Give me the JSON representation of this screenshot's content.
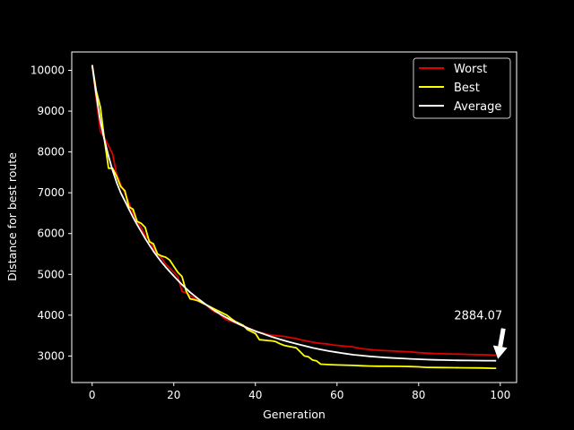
{
  "chart_data": {
    "type": "line",
    "title": "",
    "xlabel": "Generation",
    "ylabel": "Distance for best route",
    "xlim": [
      -5,
      104
    ],
    "ylim": [
      2350,
      10450
    ],
    "xticks": [
      0,
      20,
      40,
      60,
      80,
      100
    ],
    "yticks": [
      3000,
      4000,
      5000,
      6000,
      7000,
      8000,
      9000,
      10000
    ],
    "grid": false,
    "legend_position": "top-right",
    "background": "#000000",
    "axis_color": "#ffffff",
    "series": [
      {
        "name": "Worst",
        "color": "#e00000",
        "points": [
          [
            0,
            10130
          ],
          [
            1,
            9300
          ],
          [
            2,
            8500
          ],
          [
            3,
            8350
          ],
          [
            4,
            8150
          ],
          [
            5,
            7950
          ],
          [
            6,
            7450
          ],
          [
            7,
            7200
          ],
          [
            8,
            7000
          ],
          [
            9,
            6750
          ],
          [
            10,
            6500
          ],
          [
            11,
            6300
          ],
          [
            12,
            6150
          ],
          [
            13,
            5950
          ],
          [
            14,
            5850
          ],
          [
            15,
            5650
          ],
          [
            16,
            5500
          ],
          [
            17,
            5400
          ],
          [
            18,
            5250
          ],
          [
            19,
            5150
          ],
          [
            20,
            5050
          ],
          [
            21,
            4950
          ],
          [
            22,
            4580
          ],
          [
            23,
            4550
          ],
          [
            24,
            4480
          ],
          [
            25,
            4420
          ],
          [
            26,
            4380
          ],
          [
            27,
            4300
          ],
          [
            28,
            4250
          ],
          [
            29,
            4150
          ],
          [
            30,
            4080
          ],
          [
            31,
            4050
          ],
          [
            32,
            3950
          ],
          [
            33,
            3880
          ],
          [
            34,
            3850
          ],
          [
            35,
            3820
          ],
          [
            36,
            3780
          ],
          [
            37,
            3750
          ],
          [
            38,
            3700
          ],
          [
            39,
            3650
          ],
          [
            40,
            3600
          ],
          [
            41,
            3580
          ],
          [
            42,
            3560
          ],
          [
            43,
            3530
          ],
          [
            44,
            3510
          ],
          [
            45,
            3500
          ],
          [
            46,
            3490
          ],
          [
            47,
            3480
          ],
          [
            48,
            3460
          ],
          [
            49,
            3440
          ],
          [
            50,
            3430
          ],
          [
            51,
            3400
          ],
          [
            52,
            3380
          ],
          [
            53,
            3360
          ],
          [
            54,
            3340
          ],
          [
            55,
            3320
          ],
          [
            56,
            3310
          ],
          [
            57,
            3300
          ],
          [
            58,
            3290
          ],
          [
            59,
            3270
          ],
          [
            60,
            3260
          ],
          [
            61,
            3250
          ],
          [
            62,
            3240
          ],
          [
            63,
            3230
          ],
          [
            64,
            3220
          ],
          [
            65,
            3200
          ],
          [
            66,
            3180
          ],
          [
            67,
            3170
          ],
          [
            68,
            3160
          ],
          [
            69,
            3150
          ],
          [
            70,
            3140
          ],
          [
            72,
            3130
          ],
          [
            74,
            3120
          ],
          [
            76,
            3110
          ],
          [
            78,
            3100
          ],
          [
            80,
            3080
          ],
          [
            82,
            3070
          ],
          [
            84,
            3060
          ],
          [
            86,
            3055
          ],
          [
            88,
            3050
          ],
          [
            90,
            3045
          ],
          [
            92,
            3040
          ],
          [
            94,
            3035
          ],
          [
            96,
            3030
          ],
          [
            98,
            3025
          ],
          [
            99,
            3020
          ]
        ]
      },
      {
        "name": "Best",
        "color": "#ffff00",
        "points": [
          [
            0,
            10130
          ],
          [
            1,
            9500
          ],
          [
            2,
            9100
          ],
          [
            3,
            8300
          ],
          [
            4,
            7600
          ],
          [
            5,
            7600
          ],
          [
            6,
            7400
          ],
          [
            7,
            7150
          ],
          [
            8,
            7050
          ],
          [
            9,
            6650
          ],
          [
            10,
            6600
          ],
          [
            11,
            6300
          ],
          [
            12,
            6250
          ],
          [
            13,
            6150
          ],
          [
            14,
            5800
          ],
          [
            15,
            5750
          ],
          [
            16,
            5500
          ],
          [
            17,
            5450
          ],
          [
            18,
            5420
          ],
          [
            19,
            5350
          ],
          [
            20,
            5200
          ],
          [
            21,
            5050
          ],
          [
            22,
            4950
          ],
          [
            23,
            4600
          ],
          [
            24,
            4400
          ],
          [
            25,
            4380
          ],
          [
            26,
            4350
          ],
          [
            27,
            4300
          ],
          [
            28,
            4250
          ],
          [
            29,
            4200
          ],
          [
            30,
            4150
          ],
          [
            31,
            4100
          ],
          [
            32,
            4050
          ],
          [
            33,
            4000
          ],
          [
            34,
            3920
          ],
          [
            35,
            3850
          ],
          [
            36,
            3800
          ],
          [
            37,
            3750
          ],
          [
            38,
            3650
          ],
          [
            39,
            3600
          ],
          [
            40,
            3550
          ],
          [
            41,
            3400
          ],
          [
            42,
            3390
          ],
          [
            43,
            3380
          ],
          [
            44,
            3370
          ],
          [
            45,
            3350
          ],
          [
            46,
            3300
          ],
          [
            47,
            3260
          ],
          [
            48,
            3240
          ],
          [
            49,
            3220
          ],
          [
            50,
            3200
          ],
          [
            51,
            3100
          ],
          [
            52,
            3000
          ],
          [
            53,
            2980
          ],
          [
            54,
            2900
          ],
          [
            55,
            2880
          ],
          [
            56,
            2800
          ],
          [
            58,
            2790
          ],
          [
            60,
            2780
          ],
          [
            62,
            2775
          ],
          [
            64,
            2770
          ],
          [
            66,
            2760
          ],
          [
            68,
            2755
          ],
          [
            70,
            2750
          ],
          [
            72,
            2750
          ],
          [
            74,
            2748
          ],
          [
            76,
            2745
          ],
          [
            78,
            2740
          ],
          [
            80,
            2735
          ],
          [
            82,
            2720
          ],
          [
            84,
            2718
          ],
          [
            86,
            2716
          ],
          [
            88,
            2714
          ],
          [
            90,
            2712
          ],
          [
            92,
            2710
          ],
          [
            94,
            2708
          ],
          [
            96,
            2705
          ],
          [
            98,
            2700
          ],
          [
            99,
            2700
          ]
        ]
      },
      {
        "name": "Average",
        "color": "#ffffff",
        "points": [
          [
            0,
            10130
          ],
          [
            1,
            9400
          ],
          [
            2,
            8750
          ],
          [
            3,
            8300
          ],
          [
            4,
            7900
          ],
          [
            5,
            7550
          ],
          [
            6,
            7250
          ],
          [
            7,
            7000
          ],
          [
            8,
            6800
          ],
          [
            9,
            6600
          ],
          [
            10,
            6400
          ],
          [
            11,
            6220
          ],
          [
            12,
            6050
          ],
          [
            13,
            5880
          ],
          [
            14,
            5720
          ],
          [
            15,
            5570
          ],
          [
            16,
            5430
          ],
          [
            17,
            5300
          ],
          [
            18,
            5180
          ],
          [
            19,
            5070
          ],
          [
            20,
            4960
          ],
          [
            22,
            4750
          ],
          [
            24,
            4560
          ],
          [
            26,
            4400
          ],
          [
            28,
            4250
          ],
          [
            30,
            4110
          ],
          [
            32,
            3990
          ],
          [
            34,
            3880
          ],
          [
            36,
            3780
          ],
          [
            38,
            3690
          ],
          [
            40,
            3610
          ],
          [
            42,
            3540
          ],
          [
            44,
            3470
          ],
          [
            46,
            3410
          ],
          [
            48,
            3350
          ],
          [
            50,
            3300
          ],
          [
            52,
            3250
          ],
          [
            54,
            3200
          ],
          [
            56,
            3160
          ],
          [
            58,
            3120
          ],
          [
            60,
            3090
          ],
          [
            62,
            3060
          ],
          [
            64,
            3030
          ],
          [
            66,
            3010
          ],
          [
            68,
            2990
          ],
          [
            70,
            2975
          ],
          [
            72,
            2960
          ],
          [
            74,
            2950
          ],
          [
            76,
            2940
          ],
          [
            78,
            2930
          ],
          [
            80,
            2920
          ],
          [
            82,
            2912
          ],
          [
            84,
            2905
          ],
          [
            86,
            2900
          ],
          [
            88,
            2896
          ],
          [
            90,
            2893
          ],
          [
            92,
            2890
          ],
          [
            94,
            2888
          ],
          [
            96,
            2886
          ],
          [
            98,
            2885
          ],
          [
            99,
            2884.07
          ]
        ]
      }
    ],
    "annotations": [
      {
        "text": "2884.07",
        "x": 99,
        "y": 2884.07,
        "arrow": true,
        "color": "#ffffff"
      }
    ]
  }
}
